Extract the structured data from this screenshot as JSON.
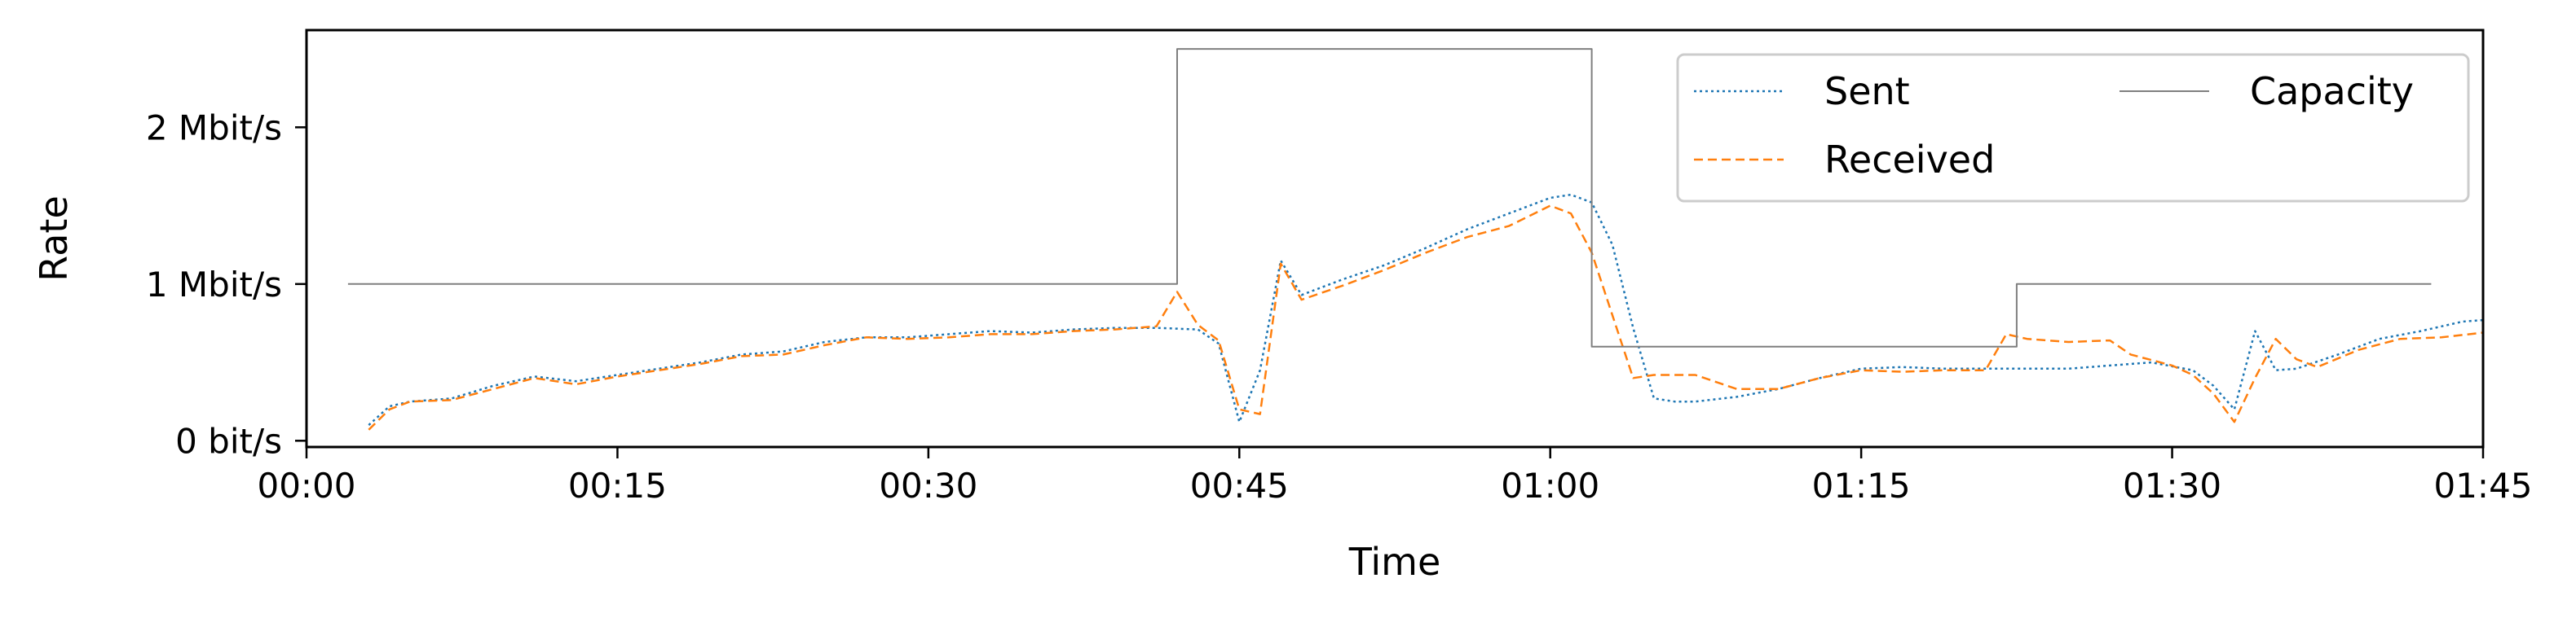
{
  "chart_data": {
    "type": "line",
    "xlabel": "Time",
    "ylabel": "Rate",
    "xlim": [
      0,
      105
    ],
    "ylim": [
      -0.04,
      2.62
    ],
    "x_ticks": [
      {
        "value": 0,
        "label": "00:00"
      },
      {
        "value": 15,
        "label": "00:15"
      },
      {
        "value": 30,
        "label": "00:30"
      },
      {
        "value": 45,
        "label": "00:45"
      },
      {
        "value": 60,
        "label": "01:00"
      },
      {
        "value": 75,
        "label": "01:15"
      },
      {
        "value": 90,
        "label": "01:30"
      },
      {
        "value": 105,
        "label": "01:45"
      }
    ],
    "y_ticks": [
      {
        "value": 0,
        "label": "0 bit/s"
      },
      {
        "value": 1,
        "label": "1 Mbit/s"
      },
      {
        "value": 2,
        "label": "2 Mbit/s"
      }
    ],
    "legend_position": "top-right",
    "series": [
      {
        "name": "Sent",
        "color": "#1f77b4",
        "dash": "dotted",
        "points": [
          [
            3,
            0.1
          ],
          [
            4,
            0.22
          ],
          [
            5,
            0.25
          ],
          [
            7,
            0.27
          ],
          [
            9,
            0.35
          ],
          [
            11,
            0.41
          ],
          [
            13,
            0.38
          ],
          [
            15,
            0.42
          ],
          [
            17,
            0.46
          ],
          [
            19,
            0.5
          ],
          [
            21,
            0.55
          ],
          [
            23,
            0.57
          ],
          [
            25,
            0.63
          ],
          [
            27,
            0.66
          ],
          [
            29,
            0.66
          ],
          [
            31,
            0.68
          ],
          [
            33,
            0.7
          ],
          [
            35,
            0.69
          ],
          [
            37,
            0.71
          ],
          [
            39,
            0.72
          ],
          [
            41,
            0.72
          ],
          [
            43,
            0.71
          ],
          [
            44,
            0.62
          ],
          [
            45,
            0.12
          ],
          [
            46,
            0.45
          ],
          [
            47,
            1.15
          ],
          [
            48,
            0.93
          ],
          [
            50,
            1.03
          ],
          [
            52,
            1.12
          ],
          [
            54,
            1.23
          ],
          [
            56,
            1.35
          ],
          [
            58,
            1.45
          ],
          [
            60,
            1.55
          ],
          [
            61,
            1.57
          ],
          [
            62,
            1.52
          ],
          [
            63,
            1.25
          ],
          [
            64,
            0.72
          ],
          [
            65,
            0.27
          ],
          [
            66,
            0.25
          ],
          [
            67,
            0.25
          ],
          [
            69,
            0.28
          ],
          [
            71,
            0.33
          ],
          [
            73,
            0.4
          ],
          [
            75,
            0.46
          ],
          [
            77,
            0.47
          ],
          [
            79,
            0.46
          ],
          [
            81,
            0.46
          ],
          [
            83,
            0.46
          ],
          [
            85,
            0.46
          ],
          [
            87,
            0.48
          ],
          [
            89,
            0.5
          ],
          [
            91,
            0.45
          ],
          [
            92,
            0.35
          ],
          [
            93,
            0.2
          ],
          [
            94,
            0.7
          ],
          [
            95,
            0.45
          ],
          [
            96,
            0.46
          ],
          [
            98,
            0.55
          ],
          [
            100,
            0.65
          ],
          [
            102,
            0.7
          ],
          [
            104,
            0.76
          ],
          [
            105,
            0.77
          ]
        ]
      },
      {
        "name": "Received",
        "color": "#ff7f0e",
        "dash": "dashed",
        "points": [
          [
            3,
            0.07
          ],
          [
            4,
            0.2
          ],
          [
            5,
            0.25
          ],
          [
            7,
            0.26
          ],
          [
            9,
            0.33
          ],
          [
            11,
            0.4
          ],
          [
            13,
            0.36
          ],
          [
            15,
            0.41
          ],
          [
            17,
            0.45
          ],
          [
            19,
            0.49
          ],
          [
            21,
            0.54
          ],
          [
            23,
            0.55
          ],
          [
            25,
            0.61
          ],
          [
            27,
            0.66
          ],
          [
            29,
            0.65
          ],
          [
            31,
            0.66
          ],
          [
            33,
            0.68
          ],
          [
            35,
            0.68
          ],
          [
            37,
            0.7
          ],
          [
            39,
            0.71
          ],
          [
            41,
            0.73
          ],
          [
            42,
            0.95
          ],
          [
            43,
            0.74
          ],
          [
            44,
            0.64
          ],
          [
            45,
            0.2
          ],
          [
            46,
            0.17
          ],
          [
            47,
            1.13
          ],
          [
            48,
            0.9
          ],
          [
            50,
            0.99
          ],
          [
            52,
            1.09
          ],
          [
            54,
            1.2
          ],
          [
            56,
            1.3
          ],
          [
            58,
            1.37
          ],
          [
            60,
            1.5
          ],
          [
            61,
            1.45
          ],
          [
            62,
            1.2
          ],
          [
            63,
            0.8
          ],
          [
            64,
            0.4
          ],
          [
            65,
            0.42
          ],
          [
            67,
            0.42
          ],
          [
            69,
            0.33
          ],
          [
            71,
            0.33
          ],
          [
            73,
            0.4
          ],
          [
            75,
            0.45
          ],
          [
            77,
            0.44
          ],
          [
            79,
            0.45
          ],
          [
            81,
            0.45
          ],
          [
            82,
            0.68
          ],
          [
            83,
            0.65
          ],
          [
            85,
            0.63
          ],
          [
            87,
            0.64
          ],
          [
            88,
            0.55
          ],
          [
            90,
            0.48
          ],
          [
            91,
            0.42
          ],
          [
            92,
            0.3
          ],
          [
            93,
            0.12
          ],
          [
            94,
            0.4
          ],
          [
            95,
            0.65
          ],
          [
            96,
            0.52
          ],
          [
            97,
            0.47
          ],
          [
            99,
            0.58
          ],
          [
            101,
            0.65
          ],
          [
            103,
            0.66
          ],
          [
            105,
            0.69
          ]
        ]
      },
      {
        "name": "Capacity",
        "color": "#7f7f7f",
        "dash": "solid",
        "points": [
          [
            2,
            1
          ],
          [
            42,
            1
          ],
          [
            42,
            2.5
          ],
          [
            62,
            2.5
          ],
          [
            62,
            0.6
          ],
          [
            82.5,
            0.6
          ],
          [
            82.5,
            1
          ],
          [
            102.5,
            1
          ]
        ]
      }
    ]
  }
}
